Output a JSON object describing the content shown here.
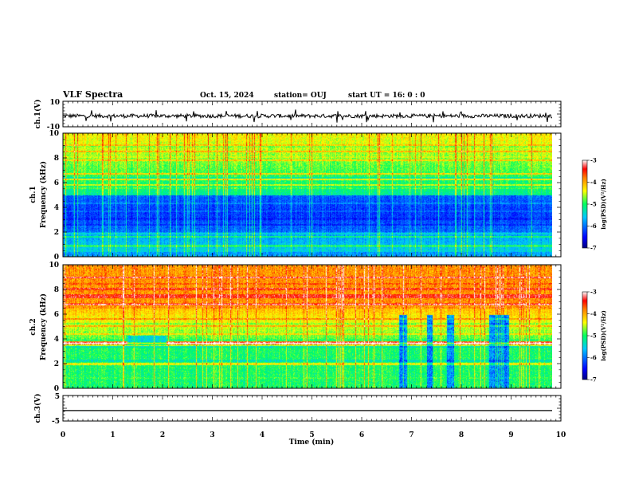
{
  "header": {
    "title": "VLF Spectra",
    "date": "Oct. 15, 2024",
    "station": "station= OUJ",
    "start_ut": "start  UT =   16: 0  : 0"
  },
  "chart_data": [
    {
      "type": "line",
      "panel": "ch1-waveform",
      "ylabel": "ch.1(V)",
      "ylim": [
        -10,
        10
      ],
      "yticks": [
        "10",
        "-10"
      ],
      "baseline": -1.5,
      "amplitude": 1.5,
      "color": "#000000"
    },
    {
      "type": "heatmap",
      "panel": "ch1-spectrogram",
      "ylabel": [
        "ch.1",
        "Frequency (kHz)"
      ],
      "ylim": [
        0,
        10
      ],
      "yticks": [
        "0",
        "2",
        "4",
        "6",
        "8",
        "10"
      ],
      "noise_floor_band_khz": [
        2,
        5
      ],
      "colorbar": {
        "ticks": [
          "-3",
          "-4",
          "-5",
          "-6",
          "-7"
        ],
        "label": "log(PSD)(V²/Hz)",
        "range": [
          -7,
          -3
        ]
      }
    },
    {
      "type": "heatmap",
      "panel": "ch2-spectrogram",
      "ylabel": [
        "ch.2",
        "Frequency (kHz)"
      ],
      "ylim": [
        0,
        10
      ],
      "yticks": [
        "0",
        "2",
        "4",
        "6",
        "8",
        "10"
      ],
      "strong_band_khz": [
        6.5,
        10
      ],
      "quiet_intervals_min": [
        [
          6.75,
          6.9
        ],
        [
          7.3,
          7.42
        ],
        [
          7.7,
          7.85
        ],
        [
          8.55,
          8.95
        ]
      ],
      "colorbar": {
        "ticks": [
          "-3",
          "-4",
          "-5",
          "-6",
          "-7"
        ],
        "label": "log(PSD)(V²/Hz)",
        "range": [
          -7,
          -3
        ]
      }
    },
    {
      "type": "line",
      "panel": "ch3-waveform",
      "ylabel": "ch.3(V)",
      "ylim": [
        -5,
        5
      ],
      "yticks": [
        "5",
        "-5"
      ],
      "baseline": -0.9,
      "amplitude": 0,
      "color": "#000000"
    }
  ],
  "x_axis": {
    "label": "Time (min)",
    "range": [
      0,
      10
    ],
    "ticks": [
      "0",
      "1",
      "2",
      "3",
      "4",
      "5",
      "6",
      "7",
      "8",
      "9",
      "10"
    ],
    "data_end": 9.83
  }
}
